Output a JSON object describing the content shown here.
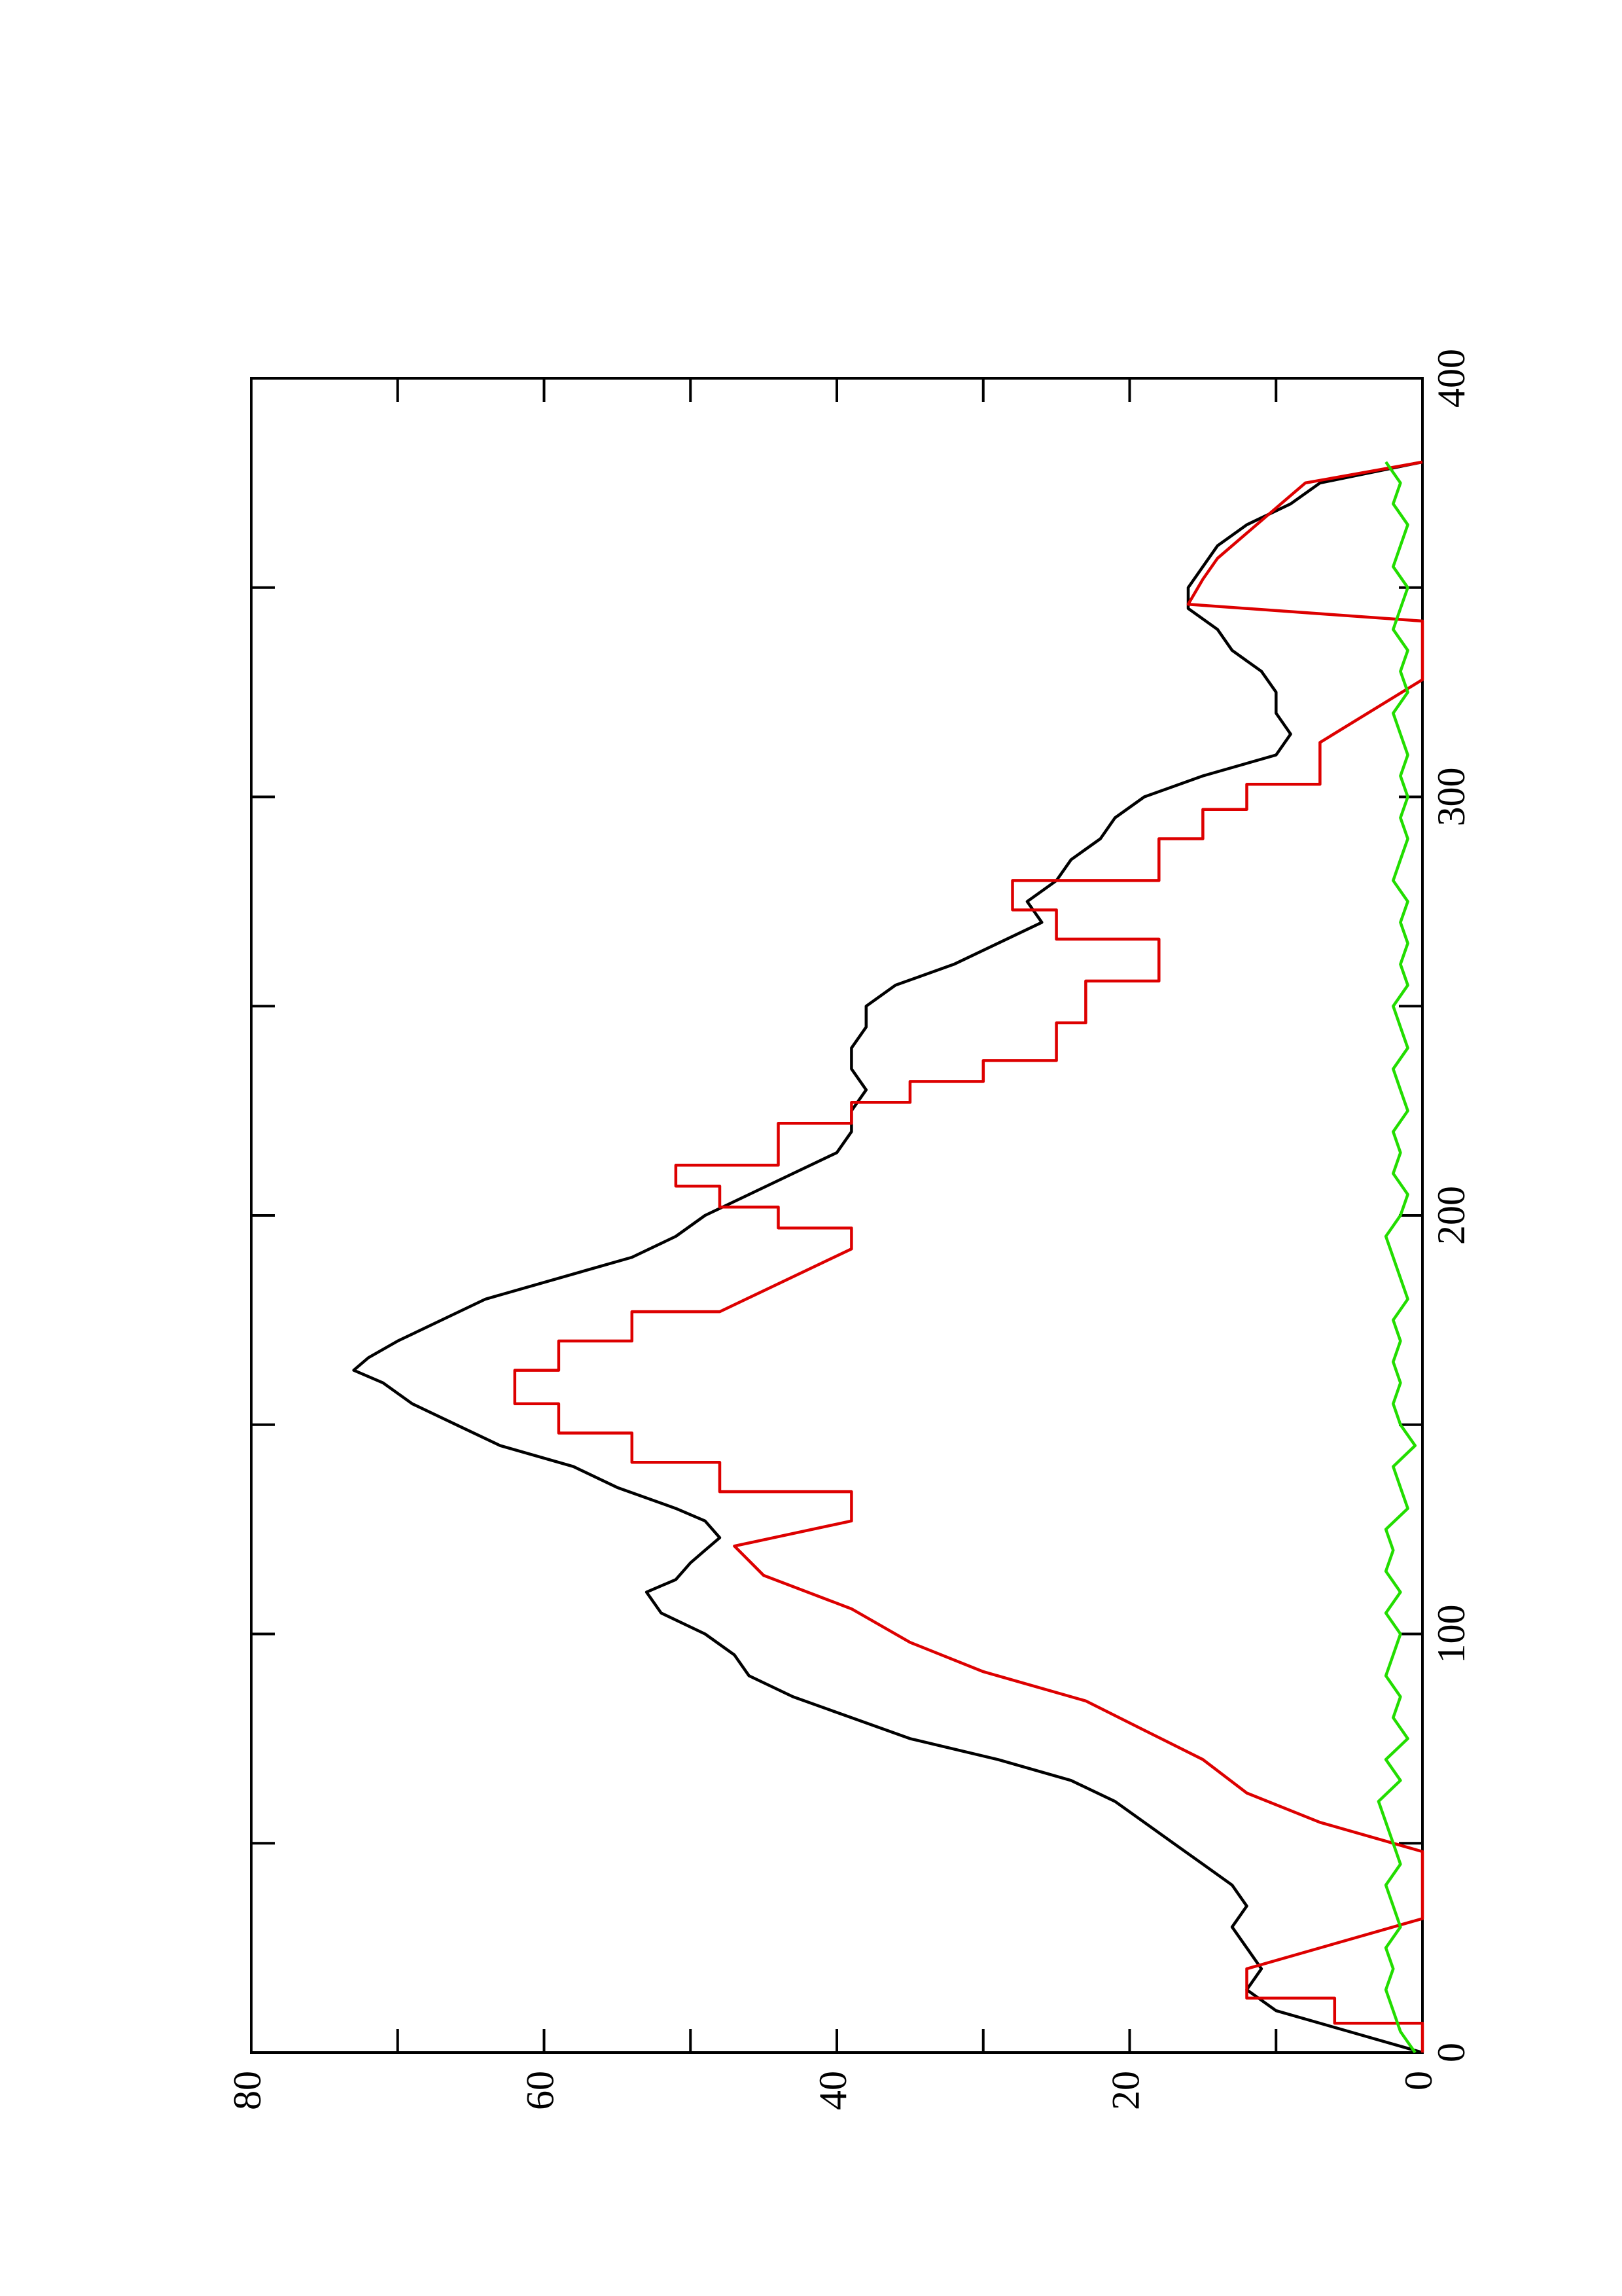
{
  "chart_data": {
    "type": "line",
    "orientation": "rotated-90-ccw",
    "xlim": [
      0,
      400
    ],
    "ylim": [
      0,
      80
    ],
    "x_ticks": [
      0,
      50,
      100,
      150,
      200,
      250,
      300,
      350,
      400
    ],
    "x_tick_labels": [
      "0",
      "",
      "100",
      "",
      "200",
      "",
      "300",
      "",
      "400"
    ],
    "y_ticks": [
      0,
      10,
      20,
      30,
      40,
      50,
      60,
      70,
      80
    ],
    "y_tick_labels": [
      "0",
      "",
      "20",
      "",
      "40",
      "",
      "60",
      "",
      "80"
    ],
    "grid": false,
    "series": [
      {
        "color": "#000000",
        "x": [
          0,
          5,
          10,
          15,
          20,
          25,
          30,
          35,
          40,
          45,
          50,
          55,
          60,
          65,
          70,
          75,
          80,
          85,
          90,
          95,
          100,
          105,
          110,
          113,
          117,
          120,
          123,
          127,
          130,
          135,
          140,
          145,
          150,
          155,
          160,
          163,
          166,
          170,
          175,
          180,
          185,
          190,
          195,
          200,
          205,
          210,
          215,
          220,
          225,
          230,
          235,
          240,
          245,
          250,
          255,
          260,
          265,
          270,
          275,
          280,
          285,
          290,
          295,
          300,
          305,
          310,
          315,
          320,
          325,
          330,
          335,
          340,
          345,
          350,
          355,
          360,
          365,
          370,
          375,
          380
        ],
        "values": [
          0,
          5,
          10,
          12,
          11,
          12,
          13,
          12,
          13,
          15,
          17,
          19,
          21,
          24,
          29,
          35,
          39,
          43,
          46,
          47,
          49,
          52,
          53,
          51,
          50,
          49,
          48,
          49,
          51,
          55,
          58,
          63,
          66,
          69,
          71,
          73,
          72,
          70,
          67,
          64,
          59,
          54,
          51,
          49,
          46,
          43,
          40,
          39,
          39,
          38,
          39,
          39,
          38,
          38,
          36,
          32,
          29,
          26,
          27,
          25,
          24,
          22,
          21,
          19,
          15,
          10,
          9,
          10,
          10,
          11,
          13,
          14,
          16,
          16,
          15,
          14,
          12,
          9,
          7,
          0
        ]
      },
      {
        "color": "#dd0000",
        "x": [
          0,
          7,
          7,
          13,
          13,
          20,
          32,
          48,
          55,
          55,
          62,
          62,
          70,
          70,
          77,
          77,
          84,
          84,
          91,
          91,
          98,
          98,
          106,
          106,
          114,
          114,
          121,
          121,
          127,
          134,
          134,
          141,
          141,
          148,
          148,
          155,
          155,
          163,
          163,
          170,
          170,
          177,
          177,
          192,
          197,
          197,
          202,
          202,
          207,
          207,
          212,
          212,
          222,
          222,
          227,
          227,
          232,
          232,
          237,
          237,
          246,
          246,
          256,
          256,
          266,
          266,
          273,
          273,
          280,
          280,
          290,
          290,
          297,
          297,
          303,
          303,
          313,
          328,
          342,
          342,
          346,
          346,
          352,
          352,
          357,
          357,
          363,
          363,
          369,
          369,
          375,
          375,
          380
        ],
        "values": [
          0,
          0,
          6,
          6,
          12,
          12,
          0,
          0,
          7,
          7,
          12,
          12,
          15,
          15,
          19,
          19,
          23,
          23,
          30,
          30,
          35,
          35,
          39,
          39,
          45,
          45,
          47,
          47,
          39,
          39,
          48,
          48,
          54,
          54,
          59,
          59,
          62,
          62,
          59,
          59,
          54,
          54,
          48,
          39,
          39,
          44,
          44,
          48,
          48,
          51,
          51,
          44,
          44,
          39,
          39,
          35,
          35,
          30,
          30,
          25,
          25,
          23,
          23,
          18,
          18,
          25,
          25,
          28,
          28,
          18,
          18,
          15,
          15,
          12,
          12,
          7,
          7,
          0,
          0,
          0,
          16,
          16,
          15,
          15,
          14,
          14,
          12,
          12,
          10,
          10,
          8,
          8,
          0
        ]
      },
      {
        "color": "#22dd00",
        "x": [
          0,
          5,
          10,
          15,
          20,
          25,
          30,
          35,
          40,
          45,
          50,
          55,
          60,
          65,
          70,
          75,
          80,
          85,
          90,
          95,
          100,
          105,
          110,
          115,
          120,
          125,
          130,
          135,
          140,
          145,
          150,
          155,
          160,
          165,
          170,
          175,
          180,
          185,
          190,
          195,
          200,
          205,
          210,
          215,
          220,
          225,
          230,
          235,
          240,
          245,
          250,
          255,
          260,
          265,
          270,
          275,
          280,
          285,
          290,
          295,
          300,
          305,
          310,
          315,
          320,
          325,
          330,
          335,
          340,
          345,
          350,
          355,
          360,
          365,
          370,
          375,
          380
        ],
        "values": [
          0.5,
          1.5,
          2,
          2.5,
          2,
          2.5,
          1.5,
          2,
          2.5,
          1.5,
          2,
          2.5,
          3,
          1.5,
          2.5,
          1,
          2,
          1.5,
          2.5,
          2,
          1.5,
          2.5,
          1.5,
          2.5,
          2,
          2.5,
          1,
          1.5,
          2,
          0.5,
          1.5,
          2,
          1.5,
          2,
          1.5,
          2,
          1,
          1.5,
          2,
          2.5,
          1.5,
          1,
          2,
          1.5,
          2,
          1,
          1.5,
          2,
          1,
          1.5,
          2,
          1,
          1.5,
          1,
          1.5,
          1,
          2,
          1.5,
          1,
          1.5,
          1,
          1.5,
          1,
          1.5,
          2,
          1,
          1.5,
          1,
          2,
          1.5,
          1,
          2,
          1.5,
          1,
          2,
          1.5,
          2.5
        ]
      }
    ]
  }
}
